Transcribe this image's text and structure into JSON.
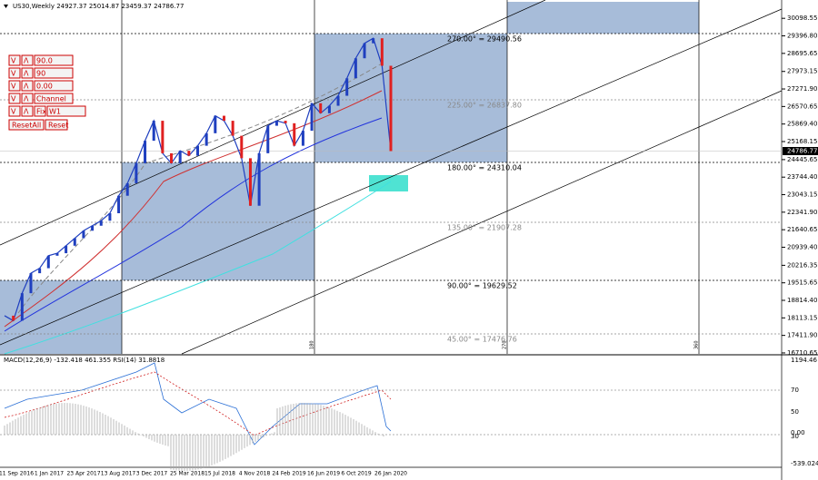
{
  "header": {
    "symbol_line": "US30,Weekly  24927.37 25014.87 23459.37 24786.77"
  },
  "controls": {
    "rows": [
      [
        "V",
        "Λ",
        "90.0"
      ],
      [
        "V",
        "Λ",
        "90"
      ],
      [
        "V",
        "Λ",
        "0.00"
      ],
      [
        "V",
        "Λ",
        "Channel"
      ],
      [
        "V",
        "Λ",
        "Fix",
        "W1"
      ]
    ],
    "buttons": [
      "ResetAll",
      "Reset"
    ]
  },
  "price_axis": {
    "ylim": [
      16600,
      30650
    ],
    "ticks": [
      30098.55,
      {
        "value": 29396.8,
        "label": "29396.80"
      },
      28695.65,
      27973.15,
      {
        "value": 27271.9,
        "label": "27271.90"
      },
      26570.65,
      {
        "value": 25869.4,
        "label": "25869.40"
      },
      25168.15,
      24445.65,
      {
        "value": 23744.4,
        "label": "23744.40"
      },
      23043.15,
      {
        "value": 22341.9,
        "label": "22341.90"
      },
      21640.65,
      {
        "value": 20939.4,
        "label": "20939.40"
      },
      20216.35,
      19515.65,
      {
        "value": 18814.4,
        "label": "18814.40"
      },
      18113.15,
      {
        "value": 17411.9,
        "label": "17411.90"
      },
      16710.65
    ],
    "current": 24786.77
  },
  "gann_levels": [
    "270.00° = 29490.56",
    "225.00° = 26837.80",
    "180.00° = 24310.04",
    "135.00° = 21907.28",
    "90.00° = 19629.52",
    "45.00° = 17476.76"
  ],
  "angle_labels": [
    "180",
    "270",
    "360"
  ],
  "close_values": [
    18200,
    18000,
    19100,
    19900,
    20100,
    20600,
    20700,
    21000,
    21300,
    21600,
    21800,
    22000,
    22300,
    23000,
    23500,
    24300,
    25200,
    26000,
    24700,
    24300,
    24800,
    24600,
    25000,
    25500,
    26200,
    26000,
    25400,
    24500,
    22600,
    24700,
    25800,
    26000,
    25900,
    25000,
    25600,
    26700,
    26300,
    26600,
    27000,
    27700,
    28500,
    29100,
    29300,
    28200,
    24786.77
  ],
  "indicator": {
    "title": "MACD(12,26,9) -132.418 461.355 RSI(14) 31.8818",
    "axis_labels": [
      "1194.46",
      "70",
      "50",
      "0.00",
      "30",
      "-539.024"
    ]
  },
  "dates": [
    "11 Sep 2016",
    "1 Jan 2017",
    "23 Apr 2017",
    "13 Aug 2017",
    "3 Dec 2017",
    "25 Mar 2018",
    "15 Jul 2018",
    "4 Nov 2018",
    "24 Feb 2019",
    "16 Jun 2019",
    "6 Oct 2019",
    "26 Jan 2020"
  ]
}
